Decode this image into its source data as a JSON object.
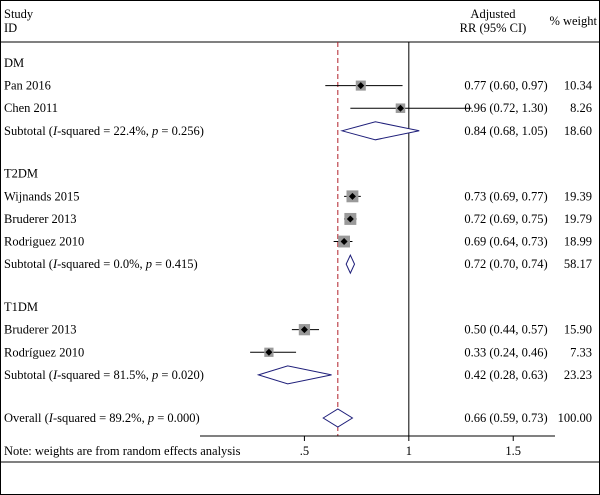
{
  "chart_data": {
    "type": "forest",
    "header": {
      "study_line1": "Study",
      "study_line2": "ID",
      "effect_line1": "Adjusted",
      "effect_line2": "RR (95% CI)",
      "weight": "% weight"
    },
    "x_ticks": [
      {
        "value": 0.5,
        "label": ".5"
      },
      {
        "value": 1,
        "label": "1"
      },
      {
        "value": 1.5,
        "label": "1.5"
      }
    ],
    "xlim": [
      0,
      1.7
    ],
    "null_line": 1,
    "overall_line": 0.66,
    "groups": [
      {
        "name": "DM",
        "studies": [
          {
            "label": "Pan 2016",
            "rr": 0.77,
            "lo": 0.6,
            "hi": 0.97,
            "ci_text": "0.77 (0.60, 0.97)",
            "weight": "10.34"
          },
          {
            "label": "Chen 2011",
            "rr": 0.96,
            "lo": 0.72,
            "hi": 1.3,
            "ci_text": "0.96 (0.72, 1.30)",
            "weight": "8.26"
          }
        ],
        "subtotal": {
          "prefix": "Subtotal (",
          "i2_italic": "I",
          "i2_text": "-squared = 22.4%, ",
          "p_italic": "p",
          "p_text": " = 0.256)",
          "rr": 0.84,
          "lo": 0.68,
          "hi": 1.05,
          "ci_text": "0.84 (0.68, 1.05)",
          "weight": "18.60"
        }
      },
      {
        "name": "T2DM",
        "studies": [
          {
            "label": "Wijnands 2015",
            "rr": 0.73,
            "lo": 0.69,
            "hi": 0.77,
            "ci_text": "0.73 (0.69, 0.77)",
            "weight": "19.39"
          },
          {
            "label": "Bruderer 2013",
            "rr": 0.72,
            "lo": 0.69,
            "hi": 0.75,
            "ci_text": "0.72 (0.69, 0.75)",
            "weight": "19.79"
          },
          {
            "label": "Rodriguez 2010",
            "rr": 0.69,
            "lo": 0.64,
            "hi": 0.73,
            "ci_text": "0.69 (0.64, 0.73)",
            "weight": "18.99"
          }
        ],
        "subtotal": {
          "prefix": "Subtotal (",
          "i2_italic": "I",
          "i2_text": "-squared = 0.0%, ",
          "p_italic": "p",
          "p_text": " = 0.415)",
          "rr": 0.72,
          "lo": 0.7,
          "hi": 0.74,
          "ci_text": "0.72 (0.70, 0.74)",
          "weight": "58.17"
        }
      },
      {
        "name": "T1DM",
        "studies": [
          {
            "label": "Bruderer 2013",
            "rr": 0.5,
            "lo": 0.44,
            "hi": 0.57,
            "ci_text": "0.50 (0.44, 0.57)",
            "weight": "15.90"
          },
          {
            "label": "Rodríguez 2010",
            "rr": 0.33,
            "lo": 0.24,
            "hi": 0.46,
            "ci_text": "0.33 (0.24, 0.46)",
            "weight": "7.33"
          }
        ],
        "subtotal": {
          "prefix": "Subtotal (",
          "i2_italic": "I",
          "i2_text": "-squared = 81.5%, ",
          "p_italic": "p",
          "p_text": " = 0.020)",
          "rr": 0.42,
          "lo": 0.28,
          "hi": 0.63,
          "ci_text": "0.42 (0.28, 0.63)",
          "weight": "23.23"
        }
      }
    ],
    "overall": {
      "prefix": "Overall (",
      "i2_italic": "I",
      "i2_text": "-squared = 89.2%, ",
      "p_italic": "p",
      "p_text": " = 0.000)",
      "rr": 0.66,
      "lo": 0.59,
      "hi": 0.73,
      "ci_text": "0.66 (0.59, 0.73)",
      "weight": "100.00"
    },
    "note": "Note: weights are from random effects analysis",
    "colors": {
      "diamond": "#1f1f7a",
      "overall_line": "#b0202a",
      "marker_box": "#9a9a9a"
    }
  }
}
